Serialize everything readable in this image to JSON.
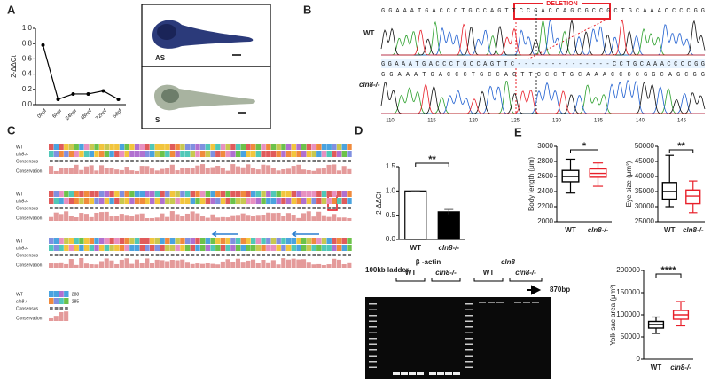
{
  "figure": {
    "panel_labels": [
      "A",
      "B",
      "C",
      "D",
      "E"
    ],
    "A": {
      "image_labels": [
        "AS",
        "S"
      ]
    },
    "B": {
      "deletion_label": "DELETION",
      "row_labels": [
        "WT",
        "cln8-/-"
      ],
      "sequences": [
        "GGAAATGACCCTGCCAGTTCCGACCAGCGCCGCTGCAAACCCCGG",
        "GGAAATGACCCTGCCAGTTC--------------CCTGCAAACCCCGG",
        "GGAAATGACCCTGCCAGTTCCCTGCAAACCCCGGCAGCGG"
      ],
      "positions": [
        110,
        115,
        120,
        125,
        130,
        135,
        140,
        145
      ]
    },
    "C": {
      "row_labels": [
        "WT",
        "cln8-/-",
        "Consensus",
        "Conservation"
      ],
      "end_numbers": [
        288,
        285
      ]
    },
    "gel": {
      "ladder_label": "100kb ladder",
      "gene_labels": [
        "β -actin",
        "cln8"
      ],
      "lane_labels": [
        "WT",
        "cln8-/-",
        "WT",
        "cln8-/-"
      ],
      "band_label": "870bp"
    }
  },
  "chart_data": [
    {
      "type": "line",
      "ylabel": "2-ΔΔCt",
      "categories": [
        "0hpf",
        "6hpf",
        "24hpf",
        "48hpf",
        "72hpf",
        "5dpf"
      ],
      "values": [
        0.78,
        0.07,
        0.14,
        0.14,
        0.18,
        0.07
      ],
      "color": "#000000",
      "ylim": [
        0,
        1
      ],
      "yticks": [
        {
          "value": 0,
          "label": "0.0"
        },
        {
          "value": 0.2,
          "label": "0.2"
        },
        {
          "value": 0.4,
          "label": "0.4"
        },
        {
          "value": 0.6,
          "label": "0.6"
        },
        {
          "value": 0.8,
          "label": "0.8"
        },
        {
          "value": 1,
          "label": "1.0"
        }
      ]
    },
    {
      "type": "bar",
      "ylabel": "2-ΔΔCt",
      "categories": [
        "WT",
        "cln8-/-"
      ],
      "values": [
        1.0,
        0.57
      ],
      "errors": [
        0.005,
        0.05
      ],
      "colors": [
        "#ffffff",
        "#000000"
      ],
      "annotation": "**",
      "ylim": [
        0,
        1.5
      ],
      "yticks": [
        {
          "value": 0,
          "label": "0.0"
        },
        {
          "value": 0.5,
          "label": "0.5"
        },
        {
          "value": 1,
          "label": "1.0"
        },
        {
          "value": 1.5,
          "label": "1.5"
        }
      ]
    },
    {
      "type": "box",
      "ylabel": "Body length (μm)",
      "categories": [
        "WT",
        "cln8-/-"
      ],
      "annotation": "*",
      "boxes": [
        {
          "min": 2380,
          "q1": 2530,
          "median": 2600,
          "q3": 2680,
          "max": 2830,
          "color": "#000000"
        },
        {
          "min": 2470,
          "q1": 2590,
          "median": 2640,
          "q3": 2700,
          "max": 2780,
          "color": "#e8202a"
        }
      ],
      "ylim": [
        2000,
        3000
      ],
      "yticks": [
        2000,
        2200,
        2400,
        2600,
        2800,
        3000
      ]
    },
    {
      "type": "box",
      "ylabel": "Eye size (μm²)",
      "categories": [
        "WT",
        "cln8-/-"
      ],
      "annotation": "**",
      "boxes": [
        {
          "min": 30000,
          "q1": 32500,
          "median": 35000,
          "q3": 38000,
          "max": 47000,
          "color": "#000000"
        },
        {
          "min": 28000,
          "q1": 31000,
          "median": 33500,
          "q3": 35500,
          "max": 38500,
          "color": "#e8202a"
        }
      ],
      "ylim": [
        25000,
        50000
      ],
      "yticks": [
        25000,
        30000,
        35000,
        40000,
        45000,
        50000
      ]
    },
    {
      "type": "box",
      "ylabel": "Yolk sac area (μm²)",
      "categories": [
        "WT",
        "cln8-/-"
      ],
      "annotation": "****",
      "boxes": [
        {
          "min": 58000,
          "q1": 70000,
          "median": 78000,
          "q3": 85000,
          "max": 95000,
          "color": "#000000"
        },
        {
          "min": 75000,
          "q1": 90000,
          "median": 100000,
          "q3": 110000,
          "max": 130000,
          "color": "#e8202a"
        }
      ],
      "ylim": [
        0,
        200000
      ],
      "yticks": [
        0,
        50000,
        100000,
        150000,
        200000
      ]
    }
  ]
}
